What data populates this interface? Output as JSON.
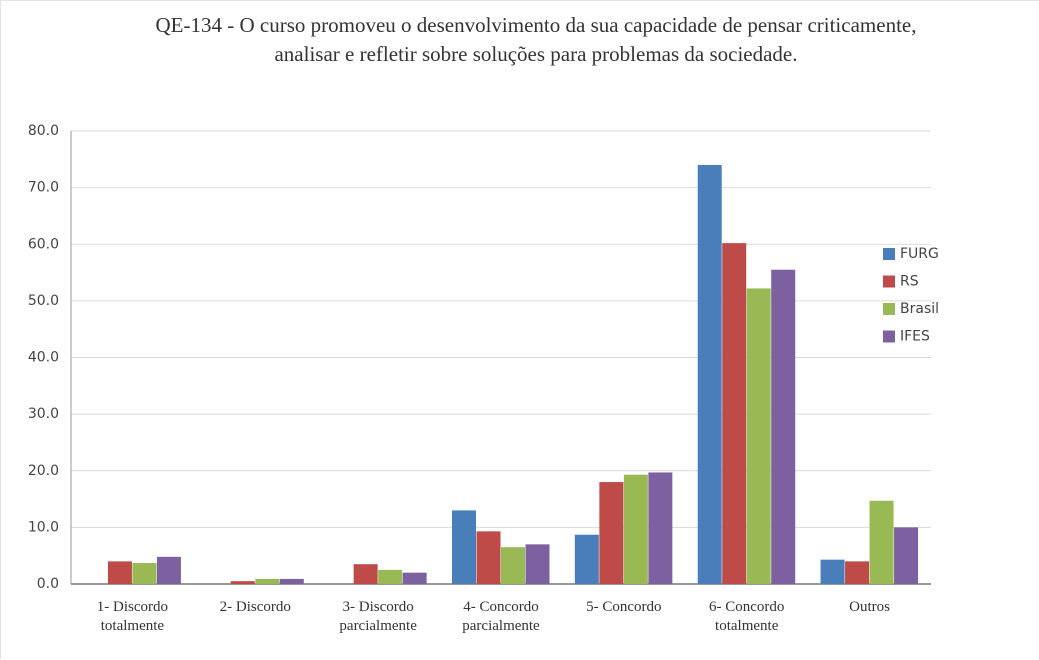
{
  "chart_data": {
    "type": "bar",
    "title": "QE-134 - O curso promoveu o desenvolvimento da sua capacidade de pensar criticamente, analisar e refletir sobre soluções para problemas da sociedade.",
    "categories": [
      "1- Discordo totalmente",
      "2- Discordo",
      "3- Discordo parcialmente",
      "4- Concordo parcialmente",
      "5- Concordo",
      "6- Concordo totalmente",
      "Outros"
    ],
    "series": [
      {
        "name": "FURG",
        "color": "#4a7ebb",
        "values": [
          0,
          0,
          0,
          13.0,
          8.7,
          74.0,
          4.3
        ]
      },
      {
        "name": "RS",
        "color": "#be4b48",
        "values": [
          4.0,
          0.5,
          3.5,
          9.3,
          18.0,
          60.2,
          4.0
        ]
      },
      {
        "name": "Brasil",
        "color": "#98b954",
        "values": [
          3.7,
          0.9,
          2.5,
          6.5,
          19.3,
          52.2,
          14.7
        ]
      },
      {
        "name": "IFES",
        "color": "#7d60a0",
        "values": [
          4.8,
          0.9,
          2.0,
          7.0,
          19.7,
          55.5,
          10.0
        ]
      }
    ],
    "ylim": [
      0,
      80
    ],
    "yticks": [
      {
        "value": 0,
        "label": "0.0"
      },
      {
        "value": 10,
        "label": "10.0"
      },
      {
        "value": 20,
        "label": "20.0"
      },
      {
        "value": 30,
        "label": "30.0"
      },
      {
        "value": 40,
        "label": "40.0"
      },
      {
        "value": 50,
        "label": "50.0"
      },
      {
        "value": 60,
        "label": "60.0"
      },
      {
        "value": 70,
        "label": "70.0"
      },
      {
        "value": 80,
        "label": "80.0"
      }
    ],
    "grid": true,
    "legend": "right"
  }
}
